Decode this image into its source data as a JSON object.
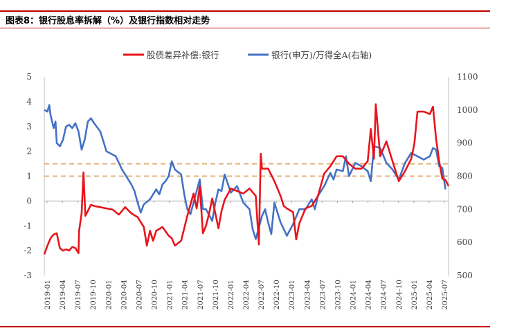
{
  "header": {
    "title": "图表8：银行股息率拆解（%）及银行指数相对走势"
  },
  "chart_data": {
    "type": "line",
    "legend_position": "top",
    "grid": false,
    "y_left": {
      "ticks": [
        "5",
        "4",
        "3",
        "2",
        "1",
        "0",
        "-1",
        "-2",
        "-3"
      ],
      "ylim": [
        -3,
        5
      ]
    },
    "y_right": {
      "ticks": [
        "1100",
        "1000",
        "900",
        "800",
        "700",
        "600",
        "500"
      ],
      "ylim": [
        500,
        1100
      ]
    },
    "x_ticks": [
      "2019-01",
      "2019-04",
      "2019-07",
      "2019-10",
      "2020-01",
      "2020-04",
      "2020-07",
      "2020-10",
      "2021-01",
      "2021-04",
      "2021-07",
      "2021-10",
      "2022-01",
      "2022-04",
      "2022-07",
      "2022-10",
      "2023-01",
      "2023-04",
      "2023-07",
      "2023-10",
      "2024-01",
      "2024-04",
      "2024-07",
      "2024-10",
      "2025-01",
      "2025-04",
      "2025-07"
    ],
    "reference_lines": [
      {
        "y": 1.5,
        "axis": "left",
        "color": "#e3b27c"
      },
      {
        "y": 1.0,
        "axis": "left",
        "color": "#e3b27c"
      }
    ],
    "series": [
      {
        "name": "股债差异补偿:银行",
        "axis": "left",
        "color": "#e8141b",
        "points": [
          [
            0,
            -2.15
          ],
          [
            0.5,
            -1.8
          ],
          [
            1,
            -1.5
          ],
          [
            1.5,
            -1.35
          ],
          [
            2,
            -1.3
          ],
          [
            2.5,
            -1.9
          ],
          [
            3,
            -2.0
          ],
          [
            3.5,
            -1.95
          ],
          [
            4,
            -2.0
          ],
          [
            4.5,
            -1.85
          ],
          [
            5,
            -1.9
          ],
          [
            5.5,
            -2.1
          ],
          [
            5.6,
            -1.2
          ],
          [
            6,
            -0.5
          ],
          [
            6.3,
            1.15
          ],
          [
            6.6,
            -0.6
          ],
          [
            7,
            -0.4
          ],
          [
            7.5,
            -0.15
          ],
          [
            8,
            -0.2
          ],
          [
            9,
            -0.25
          ],
          [
            10,
            -0.3
          ],
          [
            11,
            -0.35
          ],
          [
            12,
            -0.55
          ],
          [
            13,
            -0.25
          ],
          [
            14,
            -0.5
          ],
          [
            15,
            -0.65
          ],
          [
            16,
            -1.05
          ],
          [
            16.5,
            -1.8
          ],
          [
            17,
            -1.2
          ],
          [
            17.5,
            -1.6
          ],
          [
            18,
            -1.2
          ],
          [
            19,
            -1.05
          ],
          [
            20,
            -1.4
          ],
          [
            20.5,
            -1.5
          ],
          [
            21,
            -1.8
          ],
          [
            21.5,
            -1.7
          ],
          [
            22,
            -1.6
          ],
          [
            23,
            -0.6
          ],
          [
            24,
            0.3
          ],
          [
            24.5,
            -0.3
          ],
          [
            25,
            0.6
          ],
          [
            25.5,
            -1.3
          ],
          [
            26,
            -1.0
          ],
          [
            26.5,
            -0.5
          ],
          [
            27,
            0.1
          ],
          [
            28,
            -1.1
          ],
          [
            28.5,
            -0.4
          ],
          [
            29,
            0.05
          ],
          [
            30,
            0.5
          ],
          [
            31,
            0.4
          ],
          [
            32,
            0.3
          ],
          [
            33,
            0.5
          ],
          [
            34,
            0.2
          ],
          [
            34.5,
            -1.75
          ],
          [
            34.8,
            1.9
          ],
          [
            35,
            1.3
          ],
          [
            36,
            1.3
          ],
          [
            37,
            0.8
          ],
          [
            38,
            0.2
          ],
          [
            38.5,
            -0.2
          ],
          [
            39,
            -0.3
          ],
          [
            40,
            -0.45
          ],
          [
            40.5,
            -1.55
          ],
          [
            41,
            -0.9
          ],
          [
            42,
            -0.3
          ],
          [
            43,
            -0.2
          ],
          [
            44,
            0.2
          ],
          [
            45,
            1.1
          ],
          [
            46,
            1.4
          ],
          [
            47,
            1.8
          ],
          [
            48,
            1.8
          ],
          [
            49,
            1.5
          ],
          [
            50,
            1.3
          ],
          [
            51,
            1.3
          ],
          [
            52,
            1.6
          ],
          [
            52.5,
            2.9
          ],
          [
            53,
            1.7
          ],
          [
            53.3,
            3.9
          ],
          [
            54,
            1.8
          ],
          [
            55,
            2.4
          ],
          [
            56,
            1.6
          ],
          [
            57,
            0.8
          ],
          [
            58,
            1.2
          ],
          [
            59,
            1.7
          ],
          [
            59.5,
            2.3
          ],
          [
            60,
            3.6
          ],
          [
            61,
            3.6
          ],
          [
            62,
            3.5
          ],
          [
            62.5,
            3.8
          ],
          [
            63,
            2.5
          ],
          [
            63.5,
            1.6
          ],
          [
            64,
            0.9
          ],
          [
            64.5,
            0.85
          ],
          [
            65,
            0.6
          ]
        ]
      },
      {
        "name": "银行(申万)/万得全A(右轴)",
        "axis": "right",
        "color": "#4472c4",
        "points": [
          [
            0,
            1000
          ],
          [
            0.5,
            995
          ],
          [
            0.8,
            1015
          ],
          [
            1,
            985
          ],
          [
            1.5,
            945
          ],
          [
            1.8,
            965
          ],
          [
            2,
            900
          ],
          [
            2.5,
            890
          ],
          [
            3,
            910
          ],
          [
            3.5,
            950
          ],
          [
            4,
            955
          ],
          [
            4.5,
            945
          ],
          [
            5,
            960
          ],
          [
            5.5,
            935
          ],
          [
            6,
            880
          ],
          [
            6.5,
            910
          ],
          [
            7,
            965
          ],
          [
            7.5,
            975
          ],
          [
            8,
            960
          ],
          [
            9,
            935
          ],
          [
            10,
            875
          ],
          [
            11,
            865
          ],
          [
            11.5,
            860
          ],
          [
            12,
            840
          ],
          [
            12.5,
            820
          ],
          [
            13,
            805
          ],
          [
            13.5,
            790
          ],
          [
            14,
            775
          ],
          [
            14.5,
            755
          ],
          [
            15,
            720
          ],
          [
            15.5,
            690
          ],
          [
            16,
            715
          ],
          [
            17,
            730
          ],
          [
            18,
            760
          ],
          [
            18.5,
            745
          ],
          [
            19,
            775
          ],
          [
            19.5,
            785
          ],
          [
            20,
            800
          ],
          [
            20.5,
            845
          ],
          [
            21,
            820
          ],
          [
            22,
            805
          ],
          [
            22.5,
            745
          ],
          [
            23,
            700
          ],
          [
            23.5,
            685
          ],
          [
            24,
            720
          ],
          [
            25,
            790
          ],
          [
            25.5,
            700
          ],
          [
            26,
            700
          ],
          [
            27,
            665
          ],
          [
            27.5,
            720
          ],
          [
            28,
            760
          ],
          [
            28.5,
            755
          ],
          [
            29,
            805
          ],
          [
            30,
            750
          ],
          [
            31,
            770
          ],
          [
            32,
            720
          ],
          [
            33,
            700
          ],
          [
            33.5,
            640
          ],
          [
            34,
            610
          ],
          [
            35,
            680
          ],
          [
            35.5,
            700
          ],
          [
            36,
            660
          ],
          [
            36.5,
            625
          ],
          [
            37,
            720
          ],
          [
            38,
            660
          ],
          [
            39,
            620
          ],
          [
            40,
            655
          ],
          [
            41,
            700
          ],
          [
            42,
            700
          ],
          [
            43,
            730
          ],
          [
            43.5,
            700
          ],
          [
            44,
            740
          ],
          [
            45,
            770
          ],
          [
            46,
            810
          ],
          [
            46.5,
            790
          ],
          [
            47,
            820
          ],
          [
            48,
            815
          ],
          [
            48.5,
            860
          ],
          [
            49,
            800
          ],
          [
            50,
            840
          ],
          [
            51,
            830
          ],
          [
            52,
            815
          ],
          [
            52.5,
            785
          ],
          [
            53,
            890
          ],
          [
            54,
            885
          ],
          [
            55,
            840
          ],
          [
            56,
            820
          ],
          [
            57,
            790
          ],
          [
            58,
            840
          ],
          [
            59,
            870
          ],
          [
            60,
            860
          ],
          [
            61,
            850
          ],
          [
            62,
            860
          ],
          [
            62.5,
            885
          ],
          [
            63,
            880
          ],
          [
            63.5,
            830
          ],
          [
            64,
            825
          ],
          [
            64.5,
            760
          ]
        ]
      }
    ]
  }
}
